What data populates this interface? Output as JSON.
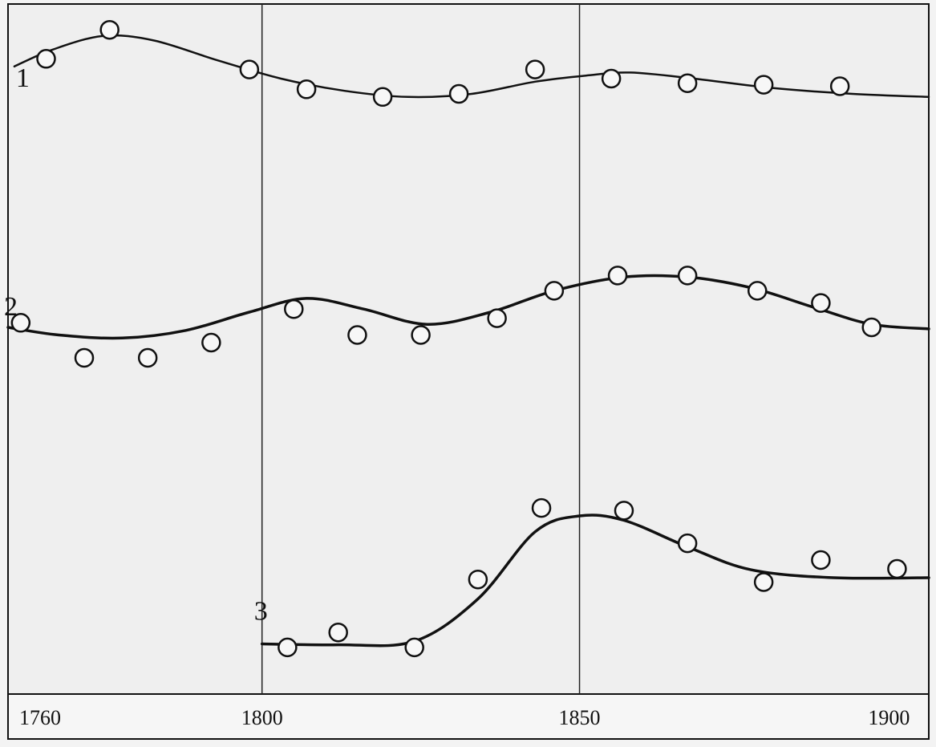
{
  "chart_data": {
    "type": "line",
    "title": "",
    "xlabel": "",
    "ylabel": "",
    "xlim": [
      1760,
      1905
    ],
    "x_ticks": [
      {
        "value": 1760,
        "label": "1760"
      },
      {
        "value": 1800,
        "label": "1800"
      },
      {
        "value": 1850,
        "label": "1850"
      },
      {
        "value": 1900,
        "label": "1900"
      }
    ],
    "grid": {
      "vertical_lines_at": [
        1800,
        1850
      ],
      "horizontal": false
    },
    "y_axis_shown": false,
    "series": [
      {
        "name": "1",
        "label": "1",
        "marker": "open-circle",
        "points": [
          [
            1766,
            93
          ],
          [
            1776,
            112
          ],
          [
            1798,
            86
          ],
          [
            1807,
            73
          ],
          [
            1819,
            68
          ],
          [
            1831,
            70
          ],
          [
            1843,
            86
          ],
          [
            1855,
            80
          ],
          [
            1867,
            77
          ],
          [
            1879,
            76
          ],
          [
            1891,
            75
          ]
        ],
        "smooth_curve": [
          [
            1761,
            88
          ],
          [
            1767,
            99
          ],
          [
            1775,
            108
          ],
          [
            1783,
            105
          ],
          [
            1793,
            92
          ],
          [
            1803,
            80
          ],
          [
            1813,
            72
          ],
          [
            1823,
            68
          ],
          [
            1833,
            70
          ],
          [
            1843,
            78
          ],
          [
            1851,
            82
          ],
          [
            1858,
            84
          ],
          [
            1868,
            80
          ],
          [
            1880,
            74
          ],
          [
            1893,
            70
          ],
          [
            1905,
            68
          ]
        ]
      },
      {
        "name": "2",
        "label": "2",
        "marker": "open-circle",
        "points": [
          [
            1762,
            83
          ],
          [
            1772,
            60
          ],
          [
            1782,
            60
          ],
          [
            1792,
            70
          ],
          [
            1805,
            92
          ],
          [
            1815,
            75
          ],
          [
            1825,
            75
          ],
          [
            1837,
            86
          ],
          [
            1846,
            104
          ],
          [
            1856,
            114
          ],
          [
            1867,
            114
          ],
          [
            1878,
            104
          ],
          [
            1888,
            96
          ],
          [
            1896,
            80
          ]
        ],
        "smooth_curve": [
          [
            1760,
            80
          ],
          [
            1768,
            75
          ],
          [
            1778,
            73
          ],
          [
            1788,
            78
          ],
          [
            1798,
            90
          ],
          [
            1807,
            99
          ],
          [
            1816,
            92
          ],
          [
            1826,
            82
          ],
          [
            1836,
            90
          ],
          [
            1846,
            104
          ],
          [
            1857,
            113
          ],
          [
            1867,
            113
          ],
          [
            1877,
            106
          ],
          [
            1887,
            93
          ],
          [
            1896,
            82
          ],
          [
            1905,
            79
          ]
        ]
      },
      {
        "name": "3",
        "label": "3",
        "marker": "open-circle",
        "points": [
          [
            1804,
            71
          ],
          [
            1812,
            88
          ],
          [
            1824,
            71
          ],
          [
            1834,
            148
          ],
          [
            1844,
            229
          ],
          [
            1857,
            226
          ],
          [
            1867,
            189
          ],
          [
            1879,
            145
          ],
          [
            1888,
            170
          ],
          [
            1900,
            160
          ]
        ],
        "smooth_curve": [
          [
            1800,
            75
          ],
          [
            1812,
            74
          ],
          [
            1824,
            78
          ],
          [
            1834,
            126
          ],
          [
            1843,
            202
          ],
          [
            1850,
            220
          ],
          [
            1857,
            215
          ],
          [
            1867,
            185
          ],
          [
            1877,
            159
          ],
          [
            1890,
            150
          ],
          [
            1905,
            150
          ]
        ]
      }
    ]
  }
}
